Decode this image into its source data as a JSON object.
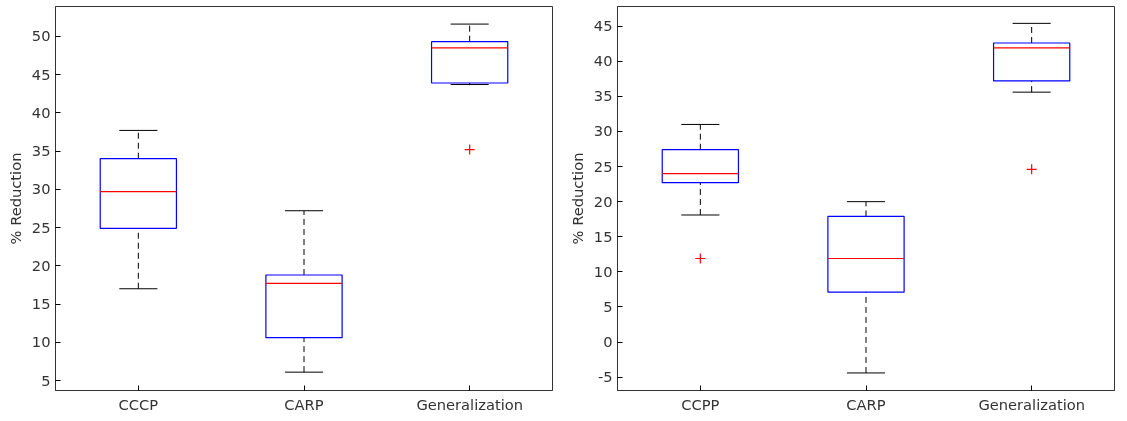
{
  "chart_data": [
    {
      "type": "box",
      "categories": [
        "CCCP",
        "CARP",
        "Generalization"
      ],
      "ylabel": "% Reduction",
      "ylim": [
        3.7,
        53.9
      ],
      "yticks": [
        5,
        10,
        15,
        20,
        25,
        30,
        35,
        40,
        45,
        50
      ],
      "boxes": [
        {
          "low": 17.0,
          "q1": 24.9,
          "median": 29.7,
          "q3": 34.0,
          "high": 37.7
        },
        {
          "low": 6.1,
          "q1": 10.6,
          "median": 17.7,
          "q3": 18.8,
          "high": 27.2
        },
        {
          "low": 43.7,
          "q1": 43.9,
          "median": 48.5,
          "q3": 49.3,
          "high": 51.6,
          "outliers": [
            35.2
          ]
        }
      ]
    },
    {
      "type": "box",
      "categories": [
        "CCPP",
        "CARP",
        "Generalization"
      ],
      "ylabel": "% Reduction",
      "ylim": [
        -6.9,
        47.8
      ],
      "yticks": [
        -5,
        0,
        5,
        10,
        15,
        20,
        25,
        30,
        35,
        40,
        45
      ],
      "boxes": [
        {
          "low": 18.1,
          "q1": 22.7,
          "median": 24.0,
          "q3": 27.4,
          "high": 31.0,
          "outliers": [
            11.9
          ]
        },
        {
          "low": -4.4,
          "q1": 7.1,
          "median": 11.9,
          "q3": 17.9,
          "high": 20.0
        },
        {
          "low": 35.6,
          "q1": 37.2,
          "median": 41.9,
          "q3": 42.6,
          "high": 45.4,
          "outliers": [
            24.6
          ]
        }
      ]
    }
  ]
}
